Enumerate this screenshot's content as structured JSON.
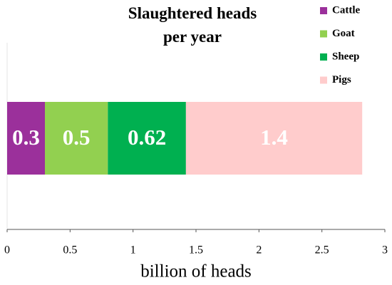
{
  "chart_data": {
    "type": "bar",
    "orientation": "horizontal",
    "stacked": true,
    "title": "Slaughtered heads per year",
    "xlabel": "billion of heads",
    "categories": [
      null
    ],
    "series": [
      {
        "name": "Cattle",
        "color": "#9b309b",
        "values": [
          0.3
        ]
      },
      {
        "name": "Goat",
        "color": "#92d050",
        "values": [
          0.5
        ]
      },
      {
        "name": "Sheep",
        "color": "#00b050",
        "values": [
          0.62
        ]
      },
      {
        "name": "Pigs",
        "color": "#ffcccc",
        "values": [
          1.4
        ]
      }
    ],
    "xlim": [
      0,
      3
    ],
    "xticks": [
      0,
      0.5,
      1,
      1.5,
      2,
      2.5,
      3
    ],
    "legend": "top-right",
    "data_labels": true
  }
}
